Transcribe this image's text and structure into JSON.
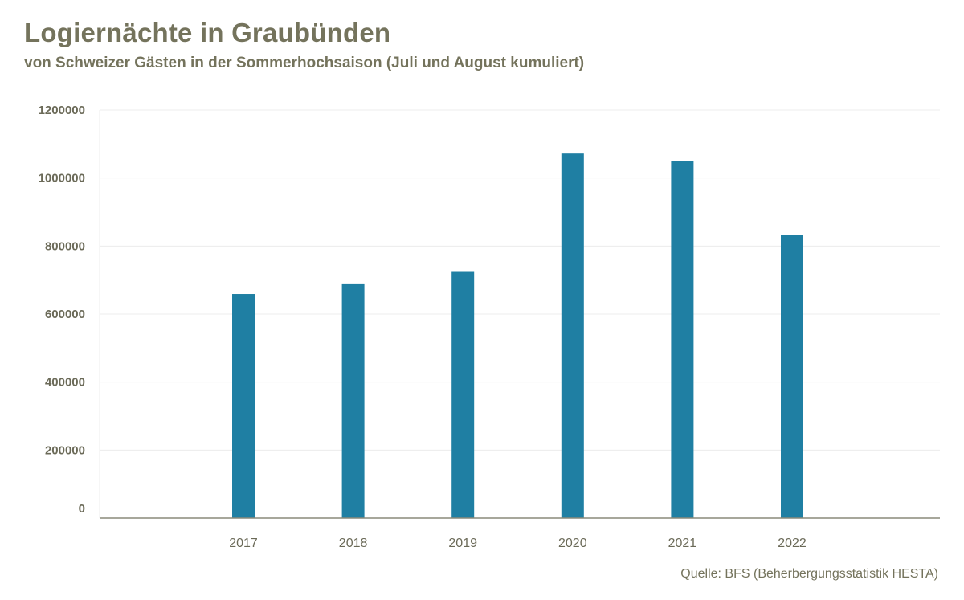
{
  "title": "Logiernächte in Graubünden",
  "subtitle": "von Schweizer Gästen in der Sommerhochsaison (Juli und August kumuliert)",
  "source": "Quelle: BFS (Beherbergungsstatistik HESTA)",
  "colors": {
    "bar": "#1f7fa3",
    "text": "#74735c",
    "grid": "#ececec",
    "axis": "#8a8a7a"
  },
  "chart_data": {
    "type": "bar",
    "title": "Logiernächte in Graubünden",
    "subtitle": "von Schweizer Gästen in der Sommerhochsaison (Juli und August kumuliert)",
    "xlabel": "",
    "ylabel": "",
    "categories": [
      "2017",
      "2018",
      "2019",
      "2020",
      "2021",
      "2022"
    ],
    "values": [
      659000,
      690000,
      724000,
      1072000,
      1051000,
      833000
    ],
    "ylim": [
      0,
      1200000
    ],
    "yticks": [
      "0",
      "200000",
      "400000",
      "600000",
      "800000",
      "1000000",
      "1200000"
    ],
    "grid": true,
    "legend": "none"
  }
}
